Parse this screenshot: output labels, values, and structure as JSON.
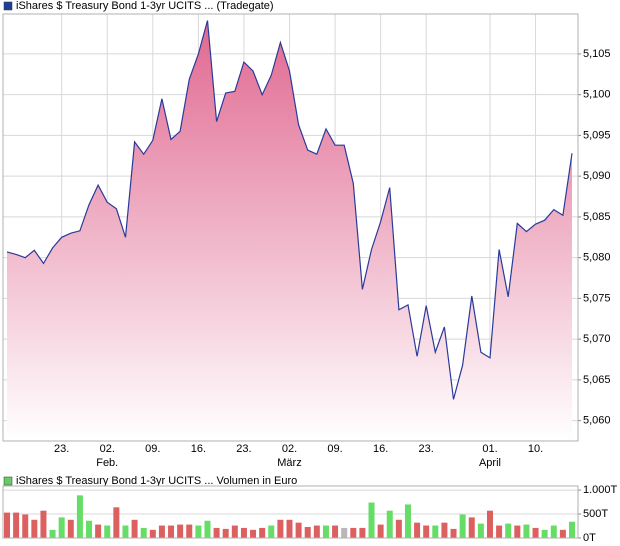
{
  "chart_data": [
    {
      "type": "area",
      "title": "iShares $ Treasury Bond 1-3yr UCITS ... (Tradegate)",
      "legend_color": "#1f3f99",
      "color": "#2a3a9a",
      "fill_top": "#e06890",
      "fill_bottom": "#ffffff",
      "categories": [
        null,
        null,
        null,
        null,
        null,
        null,
        "23.",
        null,
        null,
        null,
        null,
        "02.",
        null,
        null,
        null,
        null,
        "09.",
        null,
        null,
        null,
        null,
        "16.",
        null,
        null,
        null,
        null,
        "23.",
        null,
        null,
        null,
        null,
        "02.",
        null,
        null,
        null,
        null,
        "09.",
        null,
        null,
        null,
        null,
        "16.",
        null,
        null,
        null,
        null,
        "23.",
        null,
        null,
        null,
        null,
        null,
        null,
        "01.",
        null,
        null,
        null,
        null,
        "10.",
        null,
        null,
        null,
        null
      ],
      "months": [
        null,
        null,
        null,
        null,
        null,
        null,
        null,
        null,
        null,
        null,
        null,
        "Feb.",
        null,
        null,
        null,
        null,
        null,
        null,
        null,
        null,
        null,
        null,
        null,
        null,
        null,
        null,
        null,
        null,
        null,
        null,
        null,
        "März",
        null,
        null,
        null,
        null,
        null,
        null,
        null,
        null,
        null,
        null,
        null,
        null,
        null,
        null,
        null,
        null,
        null,
        null,
        null,
        null,
        null,
        "April",
        null,
        null,
        null,
        null,
        null,
        null,
        null,
        null,
        null
      ],
      "values": [
        5.0807,
        5.0804,
        5.08,
        5.0809,
        5.0793,
        5.0812,
        5.0825,
        5.083,
        5.0833,
        5.0865,
        5.0889,
        5.0868,
        5.086,
        5.0825,
        5.0942,
        5.0927,
        5.0944,
        5.0995,
        5.0945,
        5.0955,
        5.1019,
        5.105,
        5.1091,
        5.0967,
        5.1002,
        5.1004,
        5.104,
        5.1029,
        5.1,
        5.1024,
        5.1064,
        5.1029,
        5.0963,
        5.0932,
        5.0927,
        5.0958,
        5.0938,
        5.0938,
        5.0891,
        5.0761,
        5.081,
        5.0844,
        5.0886,
        5.0736,
        5.0742,
        5.0679,
        5.0741,
        5.0684,
        5.0715,
        5.0626,
        5.0668,
        5.0753,
        5.0684,
        5.0677,
        5.081,
        5.0752,
        5.0842,
        5.0832,
        5.0841,
        5.0846,
        5.0859,
        5.0852,
        5.0928
      ],
      "ylim": [
        5.0575,
        5.1099
      ],
      "yticks": [
        {
          "value": 5.06,
          "label": "5,060"
        },
        {
          "value": 5.065,
          "label": "5,065"
        },
        {
          "value": 5.07,
          "label": "5,070"
        },
        {
          "value": 5.075,
          "label": "5,075"
        },
        {
          "value": 5.08,
          "label": "5,080"
        },
        {
          "value": 5.085,
          "label": "5,085"
        },
        {
          "value": 5.09,
          "label": "5,090"
        },
        {
          "value": 5.095,
          "label": "5,095"
        },
        {
          "value": 5.1,
          "label": "5,100"
        },
        {
          "value": 5.105,
          "label": "5,105"
        }
      ],
      "grid": true
    },
    {
      "type": "bar",
      "title": "iShares $ Treasury Bond 1-3yr UCITS ... Volumen in Euro",
      "legend_color": "#66cc66",
      "values": [
        530,
        530,
        490,
        380,
        570,
        170,
        430,
        380,
        890,
        360,
        280,
        260,
        640,
        260,
        380,
        210,
        170,
        260,
        260,
        280,
        280,
        260,
        360,
        210,
        190,
        260,
        210,
        170,
        210,
        260,
        380,
        380,
        320,
        230,
        260,
        260,
        260,
        210,
        210,
        210,
        740,
        280,
        570,
        380,
        700,
        320,
        260,
        260,
        320,
        190,
        490,
        430,
        300,
        570,
        260,
        300,
        260,
        280,
        210,
        170,
        260,
        170,
        340
      ],
      "colors": [
        "#dd6060",
        "#dd6060",
        "#dd6060",
        "#dd6060",
        "#dd6060",
        "#66dd66",
        "#66dd66",
        "#dd6060",
        "#66dd66",
        "#66dd66",
        "#dd6060",
        "#66dd66",
        "#dd6060",
        "#66dd66",
        "#dd6060",
        "#66dd66",
        "#dd6060",
        "#dd6060",
        "#dd6060",
        "#dd6060",
        "#dd6060",
        "#66dd66",
        "#66dd66",
        "#dd6060",
        "#dd6060",
        "#dd6060",
        "#dd6060",
        "#dd6060",
        "#dd6060",
        "#66dd66",
        "#dd6060",
        "#dd6060",
        "#dd6060",
        "#dd6060",
        "#dd6060",
        "#66dd66",
        "#dd6060",
        "#b8b8b8",
        "#dd6060",
        "#dd6060",
        "#66dd66",
        "#dd6060",
        "#66dd66",
        "#dd6060",
        "#66dd66",
        "#dd6060",
        "#dd6060",
        "#66dd66",
        "#dd6060",
        "#dd6060",
        "#66dd66",
        "#dd6060",
        "#66dd66",
        "#dd6060",
        "#dd6060",
        "#66dd66",
        "#dd6060",
        "#66dd66",
        "#dd6060",
        "#66dd66",
        "#66dd66",
        "#dd6060",
        "#66dd66"
      ],
      "ylim": [
        0,
        1085
      ],
      "yticks": [
        {
          "value": 0,
          "label": "0T"
        },
        {
          "value": 500,
          "label": "500T"
        },
        {
          "value": 1000,
          "label": "1.000T"
        }
      ],
      "grid": true
    }
  ]
}
